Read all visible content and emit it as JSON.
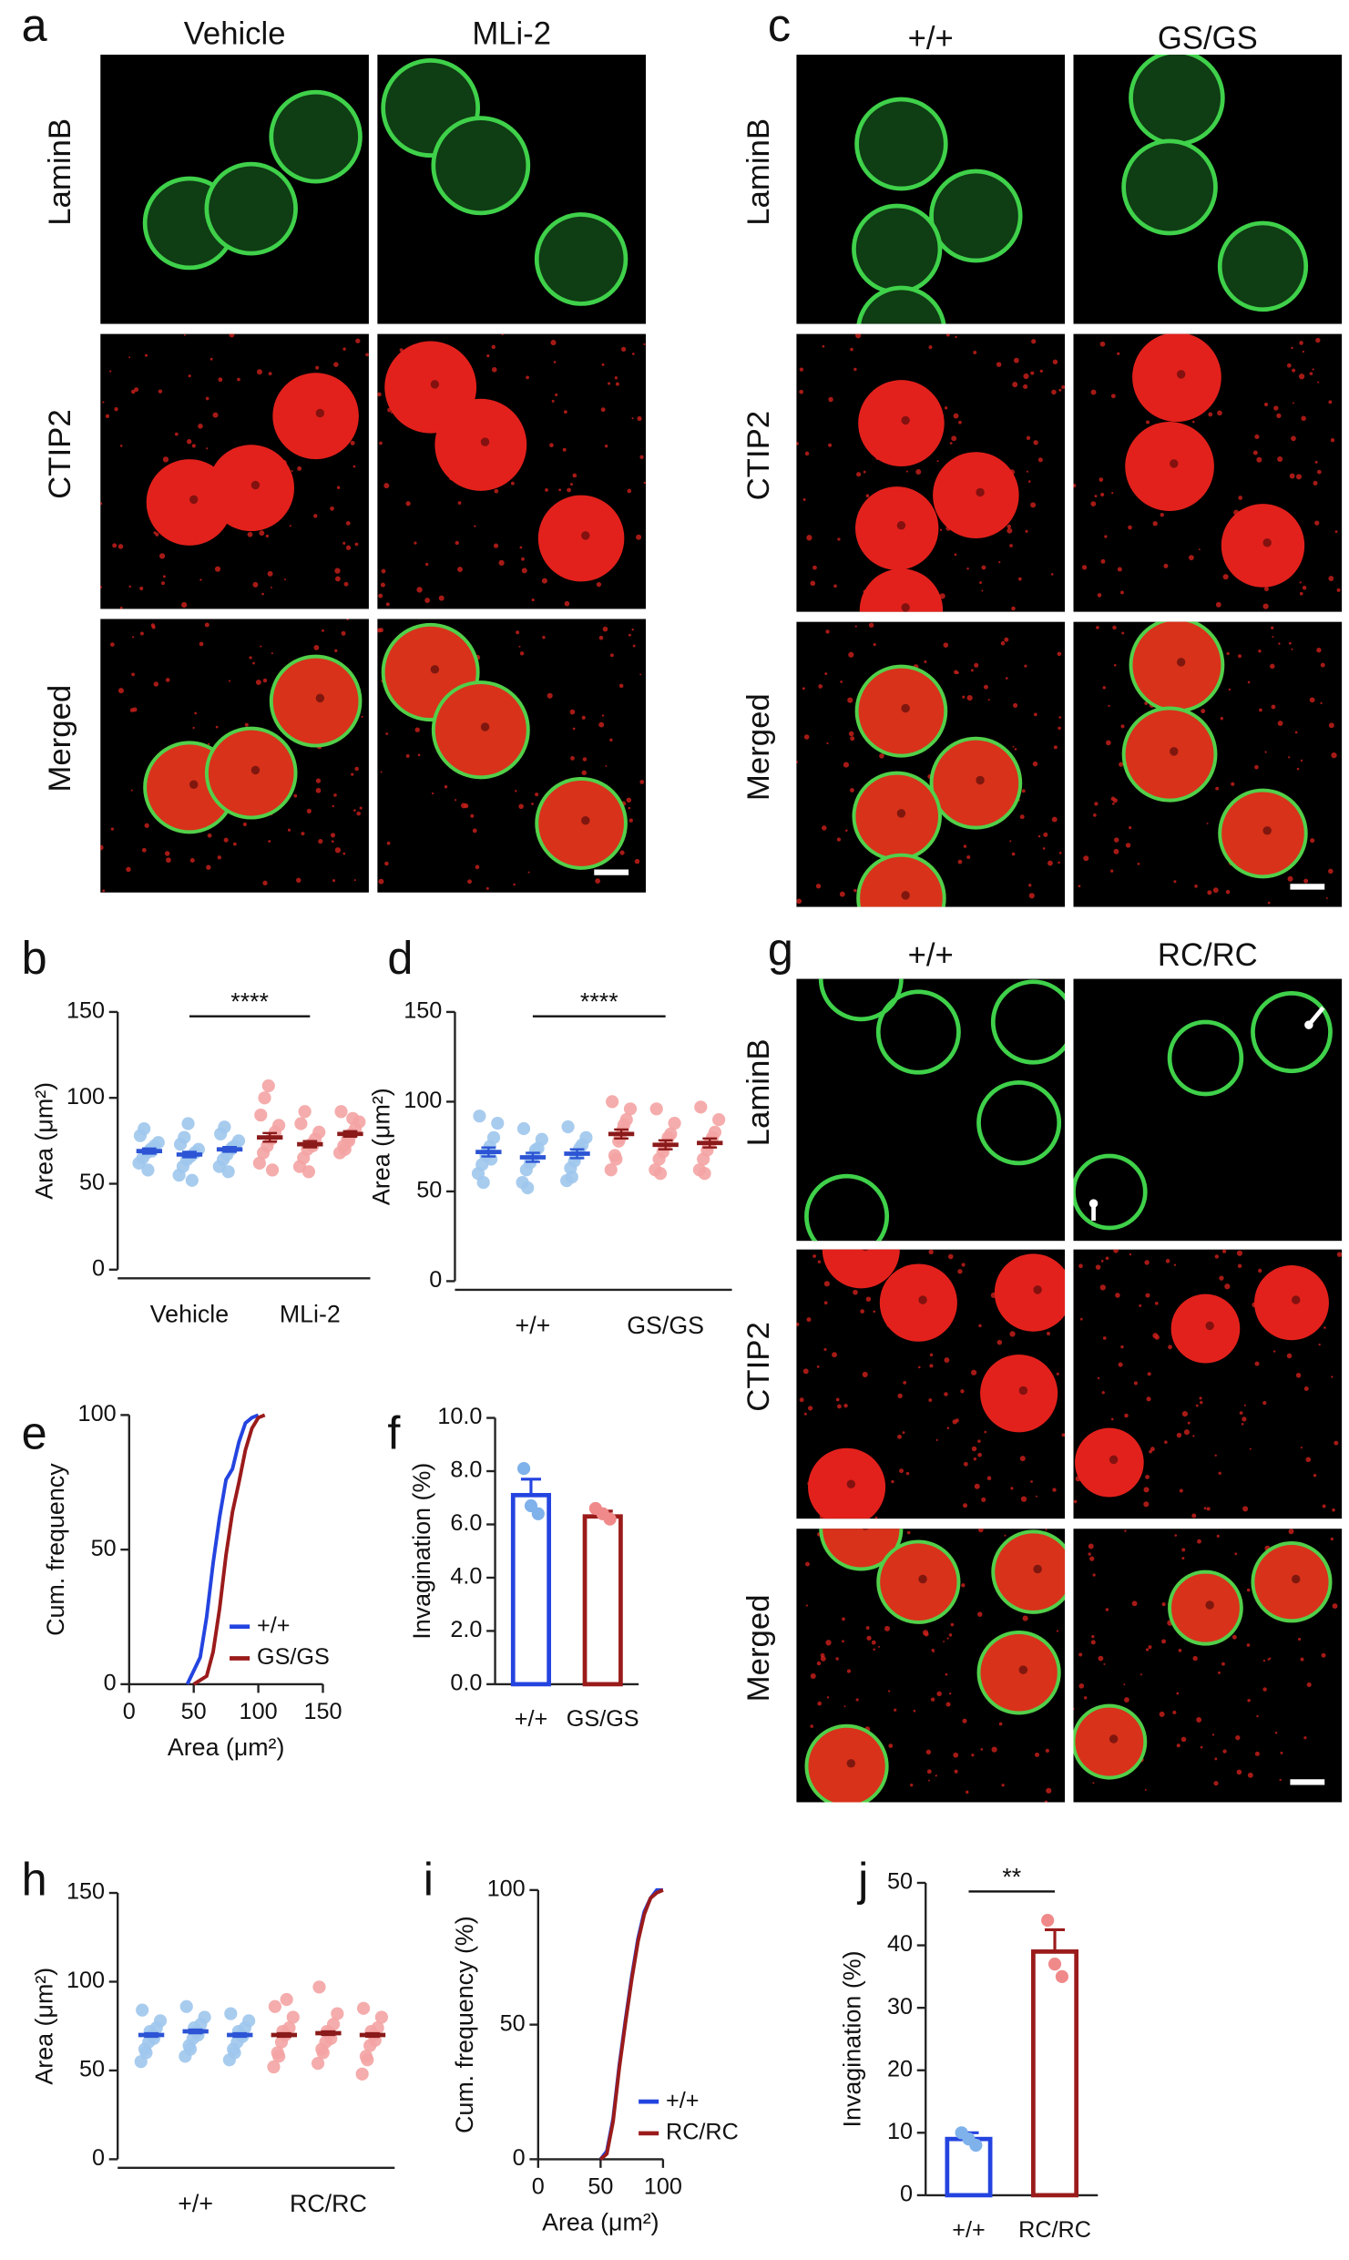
{
  "panels": [
    {
      "letter": "a",
      "columns": [
        "Vehicle",
        "MLi-2"
      ],
      "rows": [
        "LaminB",
        "CTIP2",
        "Merged"
      ]
    },
    {
      "letter": "c",
      "columns": [
        "+/+",
        "GS/GS"
      ],
      "rows": [
        "LaminB",
        "CTIP2",
        "Merged"
      ]
    },
    {
      "letter": "g",
      "columns": [
        "+/+",
        "RC/RC"
      ],
      "rows": [
        "LaminB",
        "CTIP2",
        "Merged"
      ]
    }
  ],
  "chart_data": [
    {
      "panel": "b",
      "type": "dot",
      "ylabel": "Area (μm²)",
      "annotation": "****",
      "categories": [
        null,
        "Vehicle",
        null,
        null,
        "MLi-2",
        null
      ],
      "label_colors": [
        "#1f3ce6",
        "#1f3ce6",
        "#1f3ce6",
        "#c2185b",
        "#c2185b",
        "#c2185b"
      ],
      "mean_colors": [
        "#2c54d4",
        "#2c54d4",
        "#2c54d4",
        "#8b1a1a",
        "#8b1a1a",
        "#8b1a1a"
      ],
      "point_colors": [
        "#9fc7ec",
        "#9fc7ec",
        "#9fc7ec",
        "#f4a3a3",
        "#f4a3a3",
        "#f4a3a3"
      ],
      "values": [
        69,
        67,
        70,
        77,
        73,
        79
      ],
      "errors": [
        1.5,
        1.6,
        1.4,
        2.5,
        1.8,
        1.6
      ],
      "points": [
        [
          62,
          65,
          68,
          70,
          72,
          74,
          78,
          82,
          58,
          69
        ],
        [
          55,
          60,
          64,
          66,
          68,
          70,
          73,
          77,
          85,
          52
        ],
        [
          60,
          64,
          67,
          70,
          72,
          75,
          79,
          83,
          57,
          71
        ],
        [
          62,
          68,
          72,
          76,
          80,
          84,
          90,
          100,
          107,
          58
        ],
        [
          60,
          65,
          70,
          73,
          76,
          80,
          85,
          92,
          57,
          72
        ],
        [
          68,
          72,
          76,
          79,
          82,
          86,
          92,
          70,
          75,
          88
        ]
      ],
      "ylim": [
        0,
        150
      ],
      "yticks": [
        0,
        50,
        100,
        150
      ]
    },
    {
      "panel": "d",
      "type": "dot",
      "ylabel": "Area (μm²)",
      "annotation": "****",
      "categories": [
        null,
        "+/+",
        null,
        null,
        "GS/GS",
        null
      ],
      "label_colors": [
        "#1f3ce6",
        "#1f3ce6",
        "#1f3ce6",
        "#c2185b",
        "#c2185b",
        "#c2185b"
      ],
      "mean_colors": [
        "#2c54d4",
        "#2c54d4",
        "#2c54d4",
        "#8b1a1a",
        "#8b1a1a",
        "#8b1a1a"
      ],
      "point_colors": [
        "#9fc7ec",
        "#9fc7ec",
        "#9fc7ec",
        "#f4a3a3",
        "#f4a3a3",
        "#f4a3a3"
      ],
      "values": [
        72,
        69,
        71,
        82,
        76,
        77
      ],
      "errors": [
        2.5,
        2.5,
        2.5,
        2.5,
        2.5,
        2.5
      ],
      "points": [
        [
          60,
          65,
          70,
          75,
          80,
          88,
          92,
          55,
          72,
          68
        ],
        [
          55,
          62,
          66,
          70,
          74,
          79,
          85,
          52,
          69,
          73
        ],
        [
          56,
          63,
          67,
          71,
          76,
          80,
          86,
          58,
          70,
          74
        ],
        [
          62,
          70,
          78,
          84,
          90,
          96,
          100,
          68,
          80,
          87
        ],
        [
          62,
          68,
          72,
          77,
          82,
          88,
          96,
          60,
          75,
          80
        ],
        [
          62,
          68,
          73,
          78,
          83,
          90,
          97,
          60,
          76,
          80
        ]
      ],
      "ylim": [
        0,
        150
      ],
      "yticks": [
        0,
        50,
        100,
        150
      ]
    },
    {
      "panel": "e",
      "type": "line",
      "ylabel": "Cum. frequency",
      "xlabel": "Area (μm²)",
      "legend": "lower right",
      "series": [
        {
          "name": "+/+",
          "color": "#2444e0",
          "x": [
            45,
            55,
            60,
            65,
            70,
            75,
            80,
            85,
            90,
            95,
            100
          ],
          "values": [
            0,
            10,
            25,
            45,
            62,
            76,
            80,
            90,
            97,
            99,
            100
          ]
        },
        {
          "name": "GS/GS",
          "color": "#9b1b1b",
          "x": [
            50,
            60,
            65,
            70,
            75,
            80,
            85,
            90,
            95,
            100,
            105
          ],
          "values": [
            0,
            3,
            12,
            28,
            48,
            64,
            75,
            87,
            95,
            99,
            100
          ]
        }
      ],
      "xlim": [
        0,
        150
      ],
      "xticks": [
        0,
        50,
        100,
        150
      ],
      "ylim": [
        0,
        100
      ],
      "yticks": [
        0,
        50,
        100
      ]
    },
    {
      "panel": "f",
      "type": "bar",
      "ylabel": "Invagination (%)",
      "categories": [
        "+/+",
        "GS/GS"
      ],
      "colors": [
        "#2444e0",
        "#9b1b1b"
      ],
      "point_colors": [
        "#7fb1ea",
        "#f08a8a"
      ],
      "values": [
        7.1,
        6.3
      ],
      "errors": [
        0.6,
        0.2
      ],
      "points": [
        [
          8.1,
          6.7,
          6.4
        ],
        [
          6.6,
          6.4,
          6.2
        ]
      ],
      "ylim": [
        0,
        10
      ],
      "yticks": [
        {
          "value": 0,
          "label": "0.0"
        },
        {
          "value": 2,
          "label": "2.0"
        },
        {
          "value": 4,
          "label": "4.0"
        },
        {
          "value": 6,
          "label": "6.0"
        },
        {
          "value": 8,
          "label": "8.0"
        },
        {
          "value": 10,
          "label": "10.0"
        }
      ]
    },
    {
      "panel": "h",
      "type": "dot",
      "ylabel": "Area (μm²)",
      "categories": [
        null,
        "+/+",
        null,
        null,
        "RC/RC",
        null
      ],
      "label_colors": [
        "#1f3ce6",
        "#1f3ce6",
        "#1f3ce6",
        "#c2185b",
        "#c2185b",
        "#c2185b"
      ],
      "mean_colors": [
        "#2c54d4",
        "#2c54d4",
        "#2c54d4",
        "#8b1a1a",
        "#8b1a1a",
        "#8b1a1a"
      ],
      "point_colors": [
        "#9fc7ec",
        "#9fc7ec",
        "#9fc7ec",
        "#f4a3a3",
        "#f4a3a3",
        "#f4a3a3"
      ],
      "values": [
        70,
        72,
        70,
        70,
        71,
        70
      ],
      "errors": [
        1,
        1,
        1,
        1,
        1,
        1
      ],
      "points": [
        [
          55,
          62,
          66,
          70,
          74,
          78,
          84,
          60,
          72,
          68
        ],
        [
          58,
          64,
          68,
          72,
          76,
          80,
          86,
          62,
          74,
          70
        ],
        [
          56,
          62,
          66,
          70,
          74,
          78,
          82,
          60,
          72,
          69
        ],
        [
          52,
          60,
          66,
          70,
          74,
          80,
          86,
          58,
          72,
          90
        ],
        [
          54,
          62,
          66,
          71,
          76,
          82,
          97,
          60,
          72,
          68
        ],
        [
          48,
          58,
          64,
          70,
          74,
          80,
          85,
          56,
          72,
          67
        ]
      ],
      "ylim": [
        0,
        150
      ],
      "yticks": [
        0,
        50,
        100,
        150
      ]
    },
    {
      "panel": "i",
      "type": "line",
      "ylabel": "Cum. frequency (%)",
      "xlabel": "Area (μm²)",
      "legend": "lower right",
      "series": [
        {
          "name": "+/+",
          "color": "#2444e0",
          "x": [
            50,
            55,
            60,
            65,
            70,
            75,
            80,
            85,
            90,
            95,
            100
          ],
          "values": [
            0,
            3,
            15,
            35,
            52,
            68,
            82,
            92,
            97,
            100,
            100
          ]
        },
        {
          "name": "RC/RC",
          "color": "#9b1b1b",
          "x": [
            50,
            55,
            60,
            65,
            70,
            75,
            80,
            85,
            90,
            95,
            100
          ],
          "values": [
            0,
            2,
            14,
            34,
            51,
            67,
            81,
            91,
            97,
            99,
            100
          ]
        }
      ],
      "xlim": [
        0,
        100
      ],
      "xticks": [
        0,
        50,
        100
      ],
      "ylim": [
        0,
        100
      ],
      "yticks": [
        0,
        50,
        100
      ]
    },
    {
      "panel": "j",
      "type": "bar",
      "ylabel": "Invagination (%)",
      "annotation": "**",
      "categories": [
        "+/+",
        "RC/RC"
      ],
      "colors": [
        "#2444e0",
        "#9b1b1b"
      ],
      "point_colors": [
        "#7fb1ea",
        "#f08a8a"
      ],
      "values": [
        9,
        39
      ],
      "errors": [
        1,
        3.5
      ],
      "points": [
        [
          10,
          9,
          8
        ],
        [
          44,
          37,
          35
        ]
      ],
      "ylim": [
        0,
        50
      ],
      "yticks": [
        0,
        10,
        20,
        30,
        40,
        50
      ]
    }
  ]
}
